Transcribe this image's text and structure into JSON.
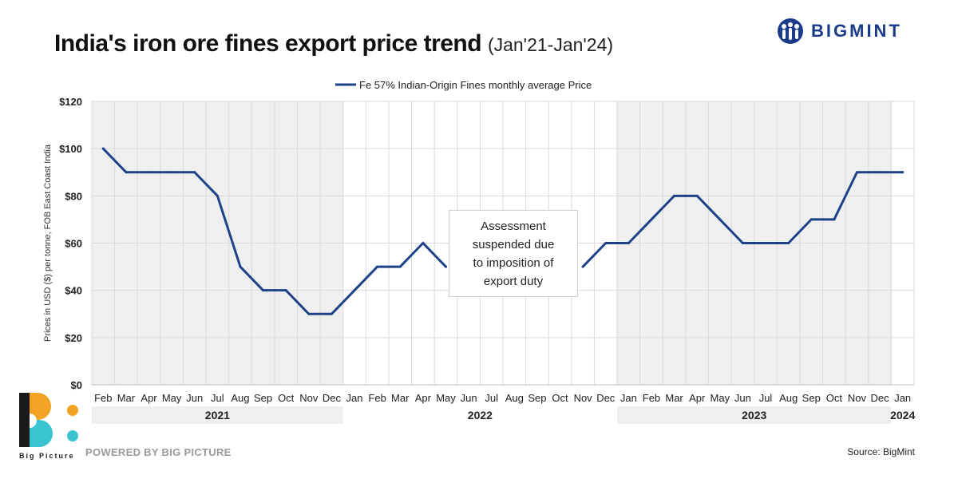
{
  "title": "India's iron ore fines export price trend",
  "title_sub": "(Jan'21-Jan'24)",
  "brand": {
    "name": "BIGMINT",
    "color": "#1a3a8a"
  },
  "footer": {
    "powered": "POWERED BY BIG PICTURE",
    "source": "Source: BigMint",
    "logo_text": "Big Picture"
  },
  "chart_data": {
    "type": "line",
    "title": "India's iron ore fines export price trend (Jan'21-Jan'24)",
    "ylabel": "Prices in USD ($) per tonne, FOB East Coast India",
    "xlabel": "",
    "ylim": [
      0,
      120
    ],
    "yticks": [
      0,
      20,
      40,
      60,
      80,
      100,
      120
    ],
    "ytick_labels": [
      "$0",
      "$20",
      "$40",
      "$60",
      "$80",
      "$100",
      "$120"
    ],
    "grid": true,
    "legend": "top-center",
    "line_color": "#1e4288",
    "categories": [
      "Feb",
      "Mar",
      "Apr",
      "May",
      "Jun",
      "Jul",
      "Aug",
      "Sep",
      "Oct",
      "Nov",
      "Dec",
      "Jan",
      "Feb",
      "Mar",
      "Apr",
      "May",
      "Jun",
      "Jul",
      "Aug",
      "Sep",
      "Oct",
      "Nov",
      "Dec",
      "Jan",
      "Feb",
      "Mar",
      "Apr",
      "May",
      "Jun",
      "Jul",
      "Aug",
      "Sep",
      "Oct",
      "Nov",
      "Dec",
      "Jan"
    ],
    "years": [
      {
        "label": "2021",
        "start": 0,
        "end": 10,
        "shaded": true
      },
      {
        "label": "2022",
        "start": 11,
        "end": 22,
        "shaded": false
      },
      {
        "label": "2023",
        "start": 23,
        "end": 34,
        "shaded": true
      },
      {
        "label": "2024",
        "start": 35,
        "end": 35,
        "shaded": false
      }
    ],
    "series": [
      {
        "name": "Fe 57% Indian-Origin Fines monthly average Price",
        "values": [
          100,
          90,
          90,
          90,
          90,
          80,
          50,
          40,
          40,
          30,
          30,
          40,
          50,
          50,
          60,
          50,
          null,
          null,
          null,
          null,
          null,
          50,
          60,
          60,
          70,
          80,
          80,
          70,
          60,
          60,
          60,
          70,
          70,
          90,
          90,
          90
        ]
      }
    ],
    "annotation": {
      "lines": [
        "Assessment",
        "suspended due",
        "to imposition of",
        "export duty"
      ]
    }
  }
}
